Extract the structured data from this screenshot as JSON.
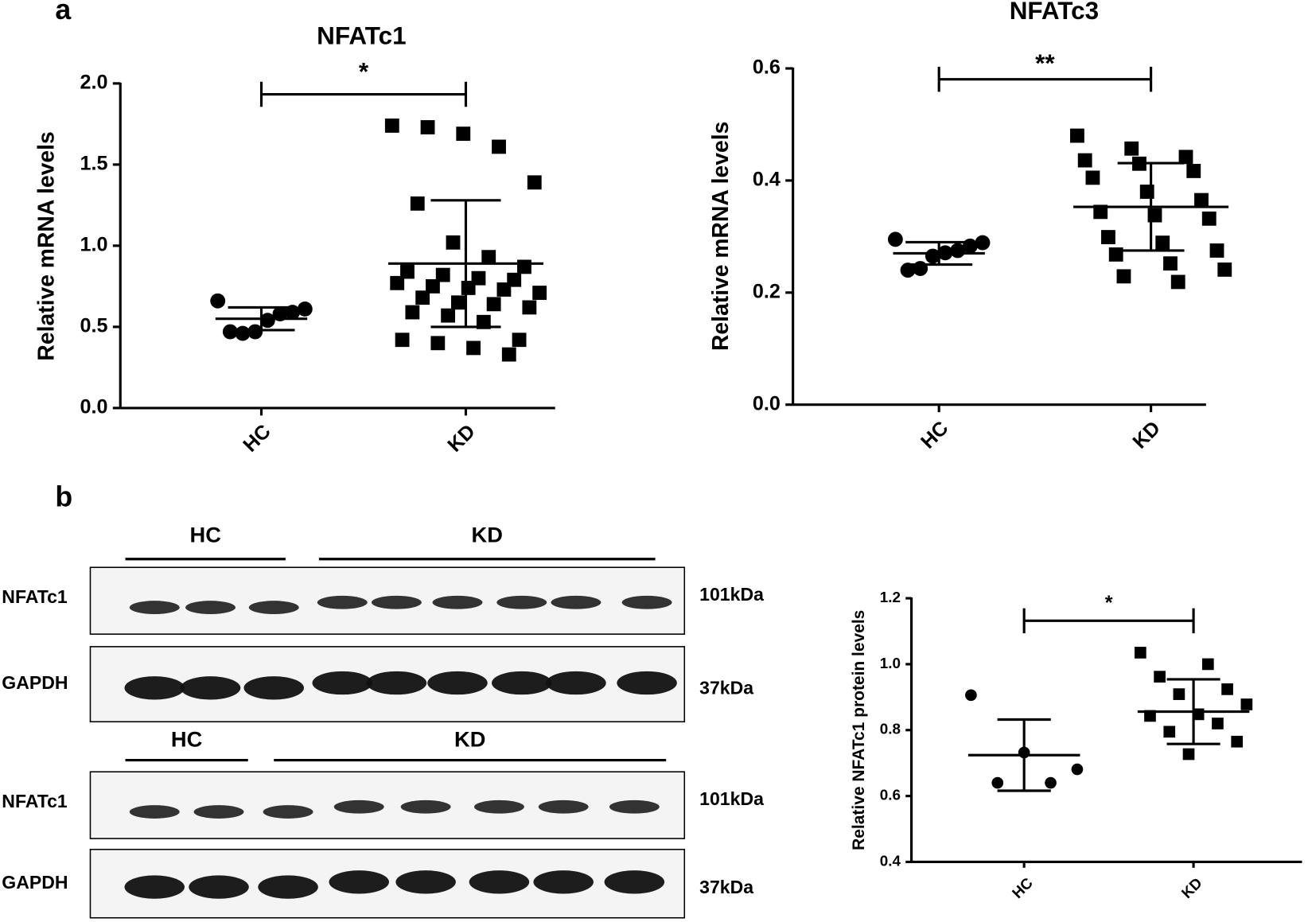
{
  "panel_labels": [
    "a",
    "b"
  ],
  "chart_data": [
    {
      "type": "strip",
      "title": "NFATc1",
      "y_label": "Relative mRNA levels",
      "categories": [
        "HC",
        "KD"
      ],
      "markers": [
        "circle",
        "square"
      ],
      "color": "#000000",
      "points": [
        [
          0.66,
          0.61,
          0.59,
          0.58,
          0.54,
          0.47,
          0.46,
          0.47
        ],
        [
          1.74,
          1.73,
          1.69,
          1.61,
          1.39,
          1.26,
          1.02,
          0.93,
          0.87,
          0.84,
          0.82,
          0.8,
          0.79,
          0.77,
          0.75,
          0.74,
          0.73,
          0.71,
          0.68,
          0.65,
          0.64,
          0.62,
          0.59,
          0.57,
          0.53,
          0.42,
          0.42,
          0.4,
          0.37,
          0.33
        ]
      ],
      "mean": [
        0.55,
        0.89
      ],
      "sd": [
        0.07,
        0.39
      ],
      "ylim": [
        0,
        2
      ],
      "yticks": [
        {
          "value": 0,
          "label": "0.0"
        },
        0.5,
        {
          "value": 1,
          "label": "1.0"
        },
        1.5,
        {
          "value": 2,
          "label": "2.0"
        }
      ],
      "significance": "*"
    },
    {
      "type": "strip",
      "title": "NFATc3",
      "y_label": "Relative mRNA levels",
      "categories": [
        "HC",
        "KD"
      ],
      "markers": [
        "circle",
        "square"
      ],
      "color": "#000000",
      "points": [
        [
          0.295,
          0.289,
          0.283,
          0.275,
          0.271,
          0.265,
          0.243,
          0.24
        ],
        [
          0.48,
          0.457,
          0.442,
          0.436,
          0.43,
          0.417,
          0.405,
          0.38,
          0.365,
          0.344,
          0.338,
          0.332,
          0.299,
          0.289,
          0.275,
          0.268,
          0.252,
          0.241,
          0.229,
          0.219
        ]
      ],
      "mean": [
        0.27,
        0.353
      ],
      "sd": [
        0.02,
        0.078
      ],
      "ylim": [
        0,
        0.6
      ],
      "yticks": [
        {
          "value": 0,
          "label": "0.0"
        },
        0.2,
        0.4,
        0.6
      ],
      "significance": "**"
    },
    {
      "type": "strip",
      "y_label": "Relative NFATc1 protein levels",
      "categories": [
        "HC",
        "KD"
      ],
      "markers": [
        "circle",
        "square"
      ],
      "color": "#000000",
      "points": [
        [
          0.906,
          0.732,
          0.681,
          0.64,
          0.64
        ],
        [
          1.035,
          1.0,
          0.962,
          0.924,
          0.909,
          0.878,
          0.848,
          0.843,
          0.82,
          0.795,
          0.765,
          0.727
        ]
      ],
      "mean": [
        0.724,
        0.856
      ],
      "sd": [
        0.108,
        0.098
      ],
      "ylim": [
        0.4,
        1.2
      ],
      "yticks": [
        0.4,
        0.6,
        0.8,
        {
          "value": 1,
          "label": "1.0"
        },
        1.2
      ],
      "significance": "*"
    }
  ],
  "blot_groups": [
    {
      "groups": [
        "HC",
        "KD"
      ],
      "blots": [
        {
          "protein": "NFATc1",
          "size": "101kDa"
        },
        {
          "protein": "GAPDH",
          "size": "37kDa"
        }
      ]
    },
    {
      "groups": [
        "HC",
        "KD"
      ],
      "blots": [
        {
          "protein": "NFATc1",
          "size": "101kDa"
        },
        {
          "protein": "GAPDH",
          "size": "37kDa"
        }
      ]
    }
  ]
}
